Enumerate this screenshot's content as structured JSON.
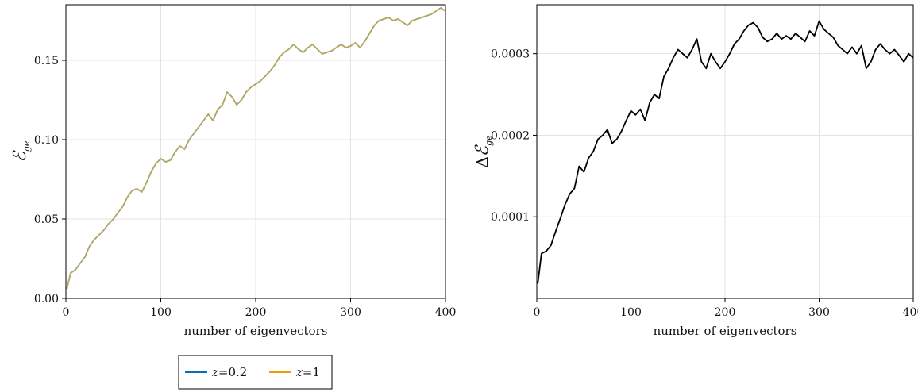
{
  "chart_data": [
    {
      "type": "line",
      "xlabel": "number of eigenvectors",
      "ylabel_prefix": "",
      "ylabel_symbol": "ℰ",
      "ylabel_sub": "ge",
      "xlim": [
        0,
        400
      ],
      "ylim": [
        0.0,
        0.185
      ],
      "xticks": [
        0,
        100,
        200,
        300,
        400
      ],
      "xtick_labels": [
        "0",
        "100",
        "200",
        "300",
        "400"
      ],
      "yticks": [
        0.0,
        0.05,
        0.1,
        0.15
      ],
      "ytick_labels": [
        "0.00",
        "0.05",
        "0.10",
        "0.15"
      ],
      "grid": true,
      "series": [
        {
          "name": "z = 0.2",
          "color": "#0072b2",
          "x": [
            1,
            5,
            10,
            15,
            20,
            25,
            30,
            35,
            40,
            45,
            50,
            55,
            60,
            65,
            70,
            75,
            80,
            85,
            90,
            95,
            100,
            105,
            110,
            115,
            120,
            125,
            130,
            135,
            140,
            145,
            150,
            155,
            160,
            165,
            170,
            175,
            180,
            185,
            190,
            195,
            200,
            205,
            210,
            215,
            220,
            225,
            230,
            235,
            240,
            245,
            250,
            255,
            260,
            265,
            270,
            275,
            280,
            285,
            290,
            295,
            300,
            305,
            310,
            315,
            320,
            325,
            330,
            335,
            340,
            345,
            350,
            355,
            360,
            365,
            370,
            375,
            380,
            385,
            390,
            395,
            400
          ],
          "values": [
            0.006,
            0.016,
            0.018,
            0.022,
            0.026,
            0.033,
            0.037,
            0.04,
            0.043,
            0.047,
            0.05,
            0.054,
            0.058,
            0.064,
            0.068,
            0.069,
            0.067,
            0.073,
            0.08,
            0.085,
            0.088,
            0.086,
            0.087,
            0.092,
            0.096,
            0.094,
            0.1,
            0.104,
            0.108,
            0.112,
            0.116,
            0.112,
            0.119,
            0.122,
            0.13,
            0.127,
            0.122,
            0.125,
            0.13,
            0.133,
            0.135,
            0.137,
            0.14,
            0.143,
            0.147,
            0.152,
            0.155,
            0.157,
            0.16,
            0.157,
            0.155,
            0.158,
            0.16,
            0.157,
            0.154,
            0.155,
            0.156,
            0.158,
            0.16,
            0.158,
            0.159,
            0.161,
            0.158,
            0.162,
            0.167,
            0.172,
            0.175,
            0.176,
            0.177,
            0.175,
            0.176,
            0.174,
            0.172,
            0.175,
            0.176,
            0.177,
            0.178,
            0.179,
            0.181,
            0.183,
            0.181
          ]
        },
        {
          "name": "z = 1",
          "color": "#e69f00",
          "x": [
            1,
            5,
            10,
            15,
            20,
            25,
            30,
            35,
            40,
            45,
            50,
            55,
            60,
            65,
            70,
            75,
            80,
            85,
            90,
            95,
            100,
            105,
            110,
            115,
            120,
            125,
            130,
            135,
            140,
            145,
            150,
            155,
            160,
            165,
            170,
            175,
            180,
            185,
            190,
            195,
            200,
            205,
            210,
            215,
            220,
            225,
            230,
            235,
            240,
            245,
            250,
            255,
            260,
            265,
            270,
            275,
            280,
            285,
            290,
            295,
            300,
            305,
            310,
            315,
            320,
            325,
            330,
            335,
            340,
            345,
            350,
            355,
            360,
            365,
            370,
            375,
            380,
            385,
            390,
            395,
            400
          ],
          "values": [
            0.006,
            0.016,
            0.018,
            0.022,
            0.026,
            0.033,
            0.037,
            0.04,
            0.043,
            0.047,
            0.05,
            0.054,
            0.058,
            0.064,
            0.068,
            0.069,
            0.067,
            0.073,
            0.08,
            0.085,
            0.088,
            0.086,
            0.087,
            0.092,
            0.096,
            0.094,
            0.1,
            0.104,
            0.108,
            0.112,
            0.116,
            0.112,
            0.119,
            0.122,
            0.13,
            0.127,
            0.122,
            0.125,
            0.13,
            0.133,
            0.135,
            0.137,
            0.14,
            0.143,
            0.147,
            0.152,
            0.155,
            0.157,
            0.16,
            0.157,
            0.155,
            0.158,
            0.16,
            0.157,
            0.154,
            0.155,
            0.156,
            0.158,
            0.16,
            0.158,
            0.159,
            0.161,
            0.158,
            0.162,
            0.167,
            0.172,
            0.175,
            0.176,
            0.177,
            0.175,
            0.176,
            0.174,
            0.172,
            0.175,
            0.176,
            0.177,
            0.178,
            0.179,
            0.181,
            0.183,
            0.181
          ]
        }
      ]
    },
    {
      "type": "line",
      "xlabel": "number of eigenvectors",
      "ylabel_prefix": "Δ",
      "ylabel_symbol": "ℰ",
      "ylabel_sub": "ge",
      "xlim": [
        0,
        400
      ],
      "ylim": [
        0.0,
        0.00036
      ],
      "xticks": [
        0,
        100,
        200,
        300,
        400
      ],
      "xtick_labels": [
        "0",
        "100",
        "200",
        "300",
        "400"
      ],
      "yticks": [
        0.0001,
        0.0002,
        0.0003
      ],
      "ytick_labels": [
        "0.0001",
        "0.0002",
        "0.0003"
      ],
      "grid": true,
      "series": [
        {
          "color": "#000000",
          "x": [
            1,
            5,
            10,
            15,
            20,
            25,
            30,
            35,
            40,
            45,
            50,
            55,
            60,
            65,
            70,
            75,
            80,
            85,
            90,
            95,
            100,
            105,
            110,
            115,
            120,
            125,
            130,
            135,
            140,
            145,
            150,
            155,
            160,
            165,
            170,
            175,
            180,
            185,
            190,
            195,
            200,
            205,
            210,
            215,
            220,
            225,
            230,
            235,
            240,
            245,
            250,
            255,
            260,
            265,
            270,
            275,
            280,
            285,
            290,
            295,
            300,
            305,
            310,
            315,
            320,
            325,
            330,
            335,
            340,
            345,
            350,
            355,
            360,
            365,
            370,
            375,
            380,
            385,
            390,
            395,
            400
          ],
          "values": [
            1.8e-05,
            5.5e-05,
            5.8e-05,
            6.5e-05,
            8.2e-05,
            9.8e-05,
            0.000115,
            0.000128,
            0.000135,
            0.000162,
            0.000155,
            0.000172,
            0.00018,
            0.000195,
            0.0002,
            0.000207,
            0.00019,
            0.000195,
            0.000205,
            0.000218,
            0.00023,
            0.000225,
            0.000232,
            0.000218,
            0.00024,
            0.00025,
            0.000245,
            0.000272,
            0.000282,
            0.000295,
            0.000305,
            0.0003,
            0.000295,
            0.000305,
            0.000318,
            0.00029,
            0.000282,
            0.0003,
            0.00029,
            0.000282,
            0.00029,
            0.0003,
            0.000312,
            0.000318,
            0.000328,
            0.000335,
            0.000338,
            0.000332,
            0.00032,
            0.000315,
            0.000318,
            0.000325,
            0.000318,
            0.000322,
            0.000318,
            0.000325,
            0.00032,
            0.000315,
            0.000328,
            0.000322,
            0.00034,
            0.00033,
            0.000325,
            0.00032,
            0.00031,
            0.000305,
            0.0003,
            0.000308,
            0.0003,
            0.00031,
            0.000282,
            0.00029,
            0.000305,
            0.000312,
            0.000305,
            0.0003,
            0.000305,
            0.000298,
            0.00029,
            0.0003,
            0.000295
          ]
        }
      ]
    }
  ],
  "legend": {
    "items": [
      {
        "label_var": "z",
        "label_eq": "=",
        "label_val": "0.2",
        "color": "#0072b2"
      },
      {
        "label_var": "z",
        "label_eq": "=",
        "label_val": "1",
        "color": "#e69f00"
      }
    ]
  }
}
